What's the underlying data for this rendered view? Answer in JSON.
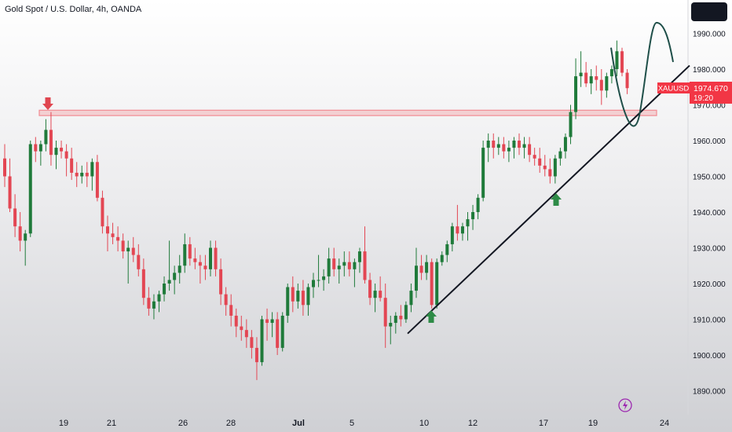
{
  "header": {
    "title": "Gold Spot / U.S. Dollar, 4h, OANDA"
  },
  "price_tag": {
    "symbol": "XAUUSD",
    "price": "1974.670",
    "countdown": "19:20"
  },
  "colors": {
    "up": "#1f7a3a",
    "down": "#e34653",
    "resistance": "#f28c93",
    "trendline": "#131722",
    "projection": "#1f4f49",
    "arrow_up": "#2e8b47",
    "arrow_down": "#e04650",
    "price_tag": "#f23645"
  },
  "chart_data": {
    "type": "candlestick",
    "title": "Gold Spot / U.S. Dollar, 4h, OANDA",
    "xlabel": "",
    "ylabel": "",
    "ylim": [
      1886,
      1996
    ],
    "y_ticks": [
      "1890.000",
      "1900.000",
      "1910.000",
      "1920.000",
      "1930.000",
      "1940.000",
      "1950.000",
      "1960.000",
      "1970.000",
      "1980.000",
      "1990.000"
    ],
    "x_ticks": [
      "19",
      "21",
      "26",
      "28",
      "Jul",
      "5",
      "10",
      "12",
      "17",
      "19",
      "24"
    ],
    "last_price": 1974.67,
    "grid": false,
    "candles": [
      {
        "o": 1955,
        "h": 1959,
        "l": 1947,
        "c": 1950
      },
      {
        "o": 1950,
        "h": 1955,
        "l": 1940,
        "c": 1941
      },
      {
        "o": 1941,
        "h": 1945,
        "l": 1933,
        "c": 1936
      },
      {
        "o": 1936,
        "h": 1940,
        "l": 1929,
        "c": 1932
      },
      {
        "o": 1932,
        "h": 1935,
        "l": 1925,
        "c": 1934
      },
      {
        "o": 1934,
        "h": 1960,
        "l": 1933,
        "c": 1959
      },
      {
        "o": 1959,
        "h": 1961,
        "l": 1954,
        "c": 1957
      },
      {
        "o": 1957,
        "h": 1960,
        "l": 1953,
        "c": 1959
      },
      {
        "o": 1959,
        "h": 1966,
        "l": 1957,
        "c": 1963
      },
      {
        "o": 1963,
        "h": 1968,
        "l": 1953,
        "c": 1956
      },
      {
        "o": 1956,
        "h": 1960,
        "l": 1952,
        "c": 1958
      },
      {
        "o": 1958,
        "h": 1960,
        "l": 1955,
        "c": 1957
      },
      {
        "o": 1957,
        "h": 1959,
        "l": 1950,
        "c": 1955
      },
      {
        "o": 1955,
        "h": 1958,
        "l": 1949,
        "c": 1951
      },
      {
        "o": 1951,
        "h": 1954,
        "l": 1947,
        "c": 1950
      },
      {
        "o": 1950,
        "h": 1953,
        "l": 1948,
        "c": 1951
      },
      {
        "o": 1951,
        "h": 1954,
        "l": 1947,
        "c": 1950
      },
      {
        "o": 1950,
        "h": 1955,
        "l": 1946,
        "c": 1954
      },
      {
        "o": 1954,
        "h": 1956,
        "l": 1943,
        "c": 1944
      },
      {
        "o": 1944,
        "h": 1946,
        "l": 1934,
        "c": 1936
      },
      {
        "o": 1936,
        "h": 1939,
        "l": 1929,
        "c": 1934
      },
      {
        "o": 1934,
        "h": 1937,
        "l": 1931,
        "c": 1933
      },
      {
        "o": 1933,
        "h": 1936,
        "l": 1929,
        "c": 1932
      },
      {
        "o": 1932,
        "h": 1934,
        "l": 1927,
        "c": 1929
      },
      {
        "o": 1929,
        "h": 1932,
        "l": 1920,
        "c": 1930
      },
      {
        "o": 1930,
        "h": 1933,
        "l": 1926,
        "c": 1928
      },
      {
        "o": 1928,
        "h": 1931,
        "l": 1922,
        "c": 1924
      },
      {
        "o": 1924,
        "h": 1927,
        "l": 1914,
        "c": 1916
      },
      {
        "o": 1916,
        "h": 1919,
        "l": 1911,
        "c": 1913
      },
      {
        "o": 1913,
        "h": 1917,
        "l": 1910,
        "c": 1915
      },
      {
        "o": 1915,
        "h": 1918,
        "l": 1912,
        "c": 1917
      },
      {
        "o": 1917,
        "h": 1922,
        "l": 1915,
        "c": 1920
      },
      {
        "o": 1920,
        "h": 1932,
        "l": 1918,
        "c": 1921
      },
      {
        "o": 1921,
        "h": 1925,
        "l": 1917,
        "c": 1923
      },
      {
        "o": 1923,
        "h": 1928,
        "l": 1920,
        "c": 1925
      },
      {
        "o": 1925,
        "h": 1934,
        "l": 1923,
        "c": 1931
      },
      {
        "o": 1931,
        "h": 1933,
        "l": 1925,
        "c": 1927
      },
      {
        "o": 1927,
        "h": 1930,
        "l": 1924,
        "c": 1926
      },
      {
        "o": 1926,
        "h": 1928,
        "l": 1920,
        "c": 1925
      },
      {
        "o": 1925,
        "h": 1928,
        "l": 1921,
        "c": 1924
      },
      {
        "o": 1924,
        "h": 1932,
        "l": 1922,
        "c": 1930
      },
      {
        "o": 1930,
        "h": 1932,
        "l": 1922,
        "c": 1924
      },
      {
        "o": 1924,
        "h": 1927,
        "l": 1914,
        "c": 1917
      },
      {
        "o": 1917,
        "h": 1919,
        "l": 1911,
        "c": 1914
      },
      {
        "o": 1914,
        "h": 1917,
        "l": 1908,
        "c": 1911
      },
      {
        "o": 1911,
        "h": 1913,
        "l": 1905,
        "c": 1908
      },
      {
        "o": 1908,
        "h": 1911,
        "l": 1904,
        "c": 1907
      },
      {
        "o": 1907,
        "h": 1910,
        "l": 1902,
        "c": 1905
      },
      {
        "o": 1905,
        "h": 1907,
        "l": 1899,
        "c": 1902
      },
      {
        "o": 1902,
        "h": 1905,
        "l": 1893,
        "c": 1898
      },
      {
        "o": 1898,
        "h": 1911,
        "l": 1897,
        "c": 1910
      },
      {
        "o": 1910,
        "h": 1913,
        "l": 1904,
        "c": 1909
      },
      {
        "o": 1909,
        "h": 1912,
        "l": 1905,
        "c": 1910
      },
      {
        "o": 1910,
        "h": 1912,
        "l": 1900,
        "c": 1902
      },
      {
        "o": 1902,
        "h": 1912,
        "l": 1901,
        "c": 1911
      },
      {
        "o": 1911,
        "h": 1920,
        "l": 1909,
        "c": 1919
      },
      {
        "o": 1919,
        "h": 1922,
        "l": 1912,
        "c": 1915
      },
      {
        "o": 1915,
        "h": 1920,
        "l": 1913,
        "c": 1918
      },
      {
        "o": 1918,
        "h": 1921,
        "l": 1911,
        "c": 1914
      },
      {
        "o": 1914,
        "h": 1920,
        "l": 1911,
        "c": 1919
      },
      {
        "o": 1919,
        "h": 1923,
        "l": 1916,
        "c": 1921
      },
      {
        "o": 1921,
        "h": 1928,
        "l": 1919,
        "c": 1921
      },
      {
        "o": 1921,
        "h": 1924,
        "l": 1918,
        "c": 1922
      },
      {
        "o": 1922,
        "h": 1930,
        "l": 1920,
        "c": 1927
      },
      {
        "o": 1927,
        "h": 1930,
        "l": 1922,
        "c": 1924
      },
      {
        "o": 1924,
        "h": 1927,
        "l": 1920,
        "c": 1925
      },
      {
        "o": 1925,
        "h": 1929,
        "l": 1922,
        "c": 1926
      },
      {
        "o": 1926,
        "h": 1929,
        "l": 1922,
        "c": 1924
      },
      {
        "o": 1924,
        "h": 1927,
        "l": 1919,
        "c": 1926
      },
      {
        "o": 1926,
        "h": 1930,
        "l": 1923,
        "c": 1929
      },
      {
        "o": 1929,
        "h": 1936,
        "l": 1920,
        "c": 1921
      },
      {
        "o": 1921,
        "h": 1923,
        "l": 1914,
        "c": 1916
      },
      {
        "o": 1916,
        "h": 1920,
        "l": 1912,
        "c": 1918
      },
      {
        "o": 1918,
        "h": 1922,
        "l": 1915,
        "c": 1916
      },
      {
        "o": 1916,
        "h": 1920,
        "l": 1902,
        "c": 1908
      },
      {
        "o": 1908,
        "h": 1911,
        "l": 1903,
        "c": 1909
      },
      {
        "o": 1909,
        "h": 1912,
        "l": 1906,
        "c": 1911
      },
      {
        "o": 1911,
        "h": 1914,
        "l": 1908,
        "c": 1910
      },
      {
        "o": 1910,
        "h": 1915,
        "l": 1909,
        "c": 1914
      },
      {
        "o": 1914,
        "h": 1920,
        "l": 1912,
        "c": 1918
      },
      {
        "o": 1918,
        "h": 1930,
        "l": 1916,
        "c": 1925
      },
      {
        "o": 1925,
        "h": 1928,
        "l": 1921,
        "c": 1923
      },
      {
        "o": 1923,
        "h": 1928,
        "l": 1921,
        "c": 1926
      },
      {
        "o": 1926,
        "h": 1927,
        "l": 1913,
        "c": 1914
      },
      {
        "o": 1914,
        "h": 1927,
        "l": 1913,
        "c": 1926
      },
      {
        "o": 1926,
        "h": 1929,
        "l": 1925,
        "c": 1928
      },
      {
        "o": 1928,
        "h": 1932,
        "l": 1926,
        "c": 1931
      },
      {
        "o": 1931,
        "h": 1937,
        "l": 1929,
        "c": 1936
      },
      {
        "o": 1936,
        "h": 1942,
        "l": 1932,
        "c": 1934
      },
      {
        "o": 1934,
        "h": 1937,
        "l": 1932,
        "c": 1936
      },
      {
        "o": 1936,
        "h": 1940,
        "l": 1932,
        "c": 1938
      },
      {
        "o": 1938,
        "h": 1942,
        "l": 1935,
        "c": 1940
      },
      {
        "o": 1940,
        "h": 1945,
        "l": 1938,
        "c": 1944
      },
      {
        "o": 1944,
        "h": 1960,
        "l": 1943,
        "c": 1958
      },
      {
        "o": 1958,
        "h": 1962,
        "l": 1954,
        "c": 1960
      },
      {
        "o": 1960,
        "h": 1962,
        "l": 1955,
        "c": 1958
      },
      {
        "o": 1958,
        "h": 1961,
        "l": 1956,
        "c": 1959
      },
      {
        "o": 1959,
        "h": 1961,
        "l": 1955,
        "c": 1957
      },
      {
        "o": 1957,
        "h": 1960,
        "l": 1954,
        "c": 1958
      },
      {
        "o": 1958,
        "h": 1961,
        "l": 1955,
        "c": 1960
      },
      {
        "o": 1960,
        "h": 1962,
        "l": 1956,
        "c": 1958
      },
      {
        "o": 1958,
        "h": 1961,
        "l": 1955,
        "c": 1959
      },
      {
        "o": 1959,
        "h": 1961,
        "l": 1954,
        "c": 1956
      },
      {
        "o": 1956,
        "h": 1958,
        "l": 1953,
        "c": 1955
      },
      {
        "o": 1955,
        "h": 1958,
        "l": 1951,
        "c": 1953
      },
      {
        "o": 1953,
        "h": 1956,
        "l": 1950,
        "c": 1952
      },
      {
        "o": 1952,
        "h": 1955,
        "l": 1948,
        "c": 1950
      },
      {
        "o": 1950,
        "h": 1956,
        "l": 1948,
        "c": 1955
      },
      {
        "o": 1955,
        "h": 1958,
        "l": 1953,
        "c": 1957
      },
      {
        "o": 1957,
        "h": 1962,
        "l": 1955,
        "c": 1961
      },
      {
        "o": 1961,
        "h": 1970,
        "l": 1959,
        "c": 1968
      },
      {
        "o": 1968,
        "h": 1983,
        "l": 1966,
        "c": 1978
      },
      {
        "o": 1978,
        "h": 1985,
        "l": 1975,
        "c": 1979
      },
      {
        "o": 1979,
        "h": 1982,
        "l": 1975,
        "c": 1976
      },
      {
        "o": 1976,
        "h": 1980,
        "l": 1973,
        "c": 1978
      },
      {
        "o": 1978,
        "h": 1981,
        "l": 1974,
        "c": 1977
      },
      {
        "o": 1977,
        "h": 1980,
        "l": 1970,
        "c": 1974
      },
      {
        "o": 1974,
        "h": 1979,
        "l": 1972,
        "c": 1978
      },
      {
        "o": 1978,
        "h": 1981,
        "l": 1976,
        "c": 1980
      },
      {
        "o": 1980,
        "h": 1988,
        "l": 1978,
        "c": 1985
      },
      {
        "o": 1985,
        "h": 1986,
        "l": 1978,
        "c": 1979
      },
      {
        "o": 1979,
        "h": 1980,
        "l": 1973,
        "c": 1974.67
      }
    ],
    "annotations": {
      "resistance_zone": [
        1967,
        1968.5
      ],
      "trendline": {
        "from": 1906,
        "to": 1981
      },
      "arrows": [
        {
          "direction": "down",
          "price": 1969
        },
        {
          "direction": "up",
          "price": 1911
        },
        {
          "direction": "up",
          "price": 1943
        }
      ],
      "projection": {
        "type": "arc",
        "low": 1967,
        "high": 1993
      }
    }
  }
}
